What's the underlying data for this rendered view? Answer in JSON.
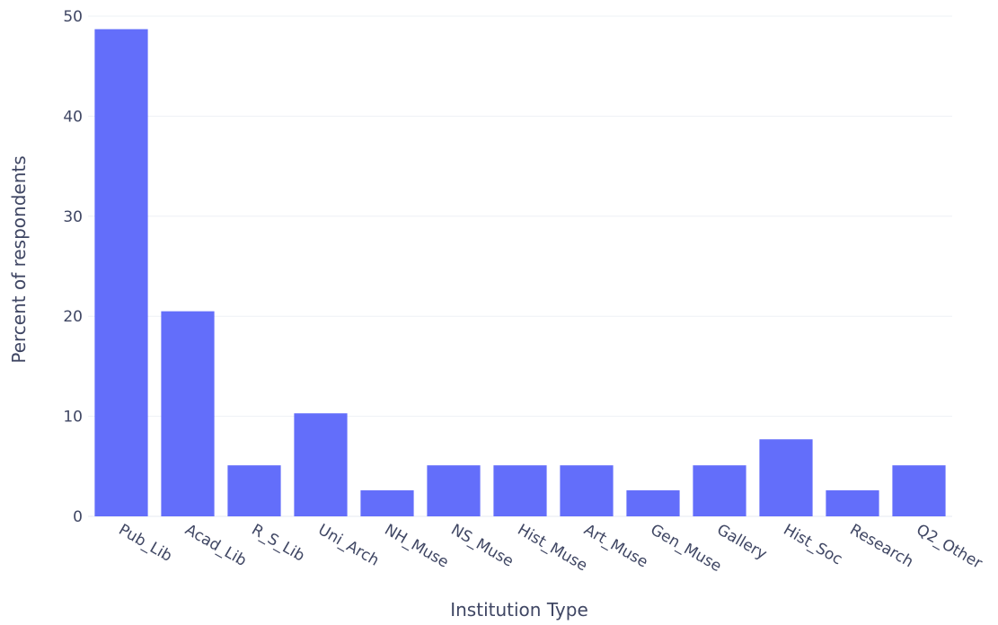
{
  "chart_data": {
    "type": "bar",
    "title": "",
    "xlabel": "Institution Type",
    "ylabel": "Percent of respondents",
    "categories": [
      "Pub_Lib",
      "Acad_Lib",
      "R_S_Lib",
      "Uni_Arch",
      "NH_Muse",
      "NS_Muse",
      "Hist_Muse",
      "Art_Muse",
      "Gen_Muse",
      "Gallery",
      "Hist_Soc",
      "Research",
      "Q2_Other"
    ],
    "values": [
      48.7,
      20.5,
      5.1,
      10.3,
      2.6,
      5.1,
      5.1,
      5.1,
      2.6,
      5.1,
      7.7,
      2.6,
      5.1
    ],
    "ylim": [
      0,
      50
    ],
    "yticks": [
      0,
      10,
      20,
      30,
      40,
      50
    ],
    "grid": true,
    "legend": "none",
    "bar_color": "#636efa",
    "grid_color": "#eef0f5",
    "text_color": "#3f4663"
  }
}
